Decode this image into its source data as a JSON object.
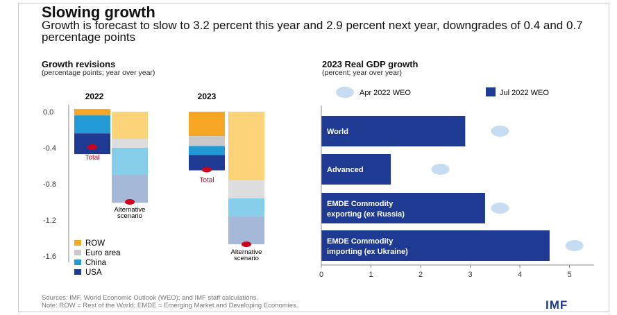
{
  "header": {
    "title": "Slowing growth",
    "subtitle": "Growth is forecast to slow to 3.2 percent this year and 2.9 percent next year, downgrades of 0.4 and 0.7 percentage points"
  },
  "left_panel": {
    "title": "Growth revisions",
    "subtitle": "(percentage points; year over year)"
  },
  "right_panel": {
    "title": "2023 Real GDP growth",
    "subtitle": "(percent; year over year)"
  },
  "footer": {
    "sources": "Sources: IMF, World Economic Outlook (WEO); and IMF staff calculations.",
    "note": "Note: ROW = Rest of the World; EMDE = Emerging Market and Developing Economies.",
    "logo": "IMF"
  },
  "colors": {
    "row": "#f5a623",
    "euro_area": "#c8c8c8",
    "china": "#2399d6",
    "usa": "#1f3a93",
    "alt_light_yellow": "#fbd47a",
    "alt_light_gray": "#dddddd",
    "alt_light_blue": "#87ceeb",
    "alt_steel_blue": "#a5b8d8",
    "marker_red": "#d0021b",
    "apr_marker": "#c6dcf0",
    "jul_bar": "#1f3a93"
  },
  "chart_data": [
    {
      "type": "bar",
      "subtype": "stacked",
      "title": "Growth revisions",
      "subtitle": "(percentage points; year over year)",
      "ylim": [
        -1.6,
        0.0
      ],
      "yticks": [
        "0.0",
        "-0.4",
        "-0.8",
        "-1.2",
        "-1.6"
      ],
      "ytick_values": [
        0.0,
        -0.4,
        -0.8,
        -1.2,
        -1.6
      ],
      "grid": false,
      "legend_position": "bottom-left",
      "legend": [
        "ROW",
        "Euro area",
        "China",
        "USA"
      ],
      "groups": [
        {
          "label": "2022",
          "baseline": {
            "positive": [
              {
                "component": "ROW",
                "value": 0.03
              }
            ],
            "negative": [
              {
                "component": "ROW",
                "value": -0.04
              },
              {
                "component": "China",
                "value": -0.2
              },
              {
                "component": "USA",
                "value": -0.23
              }
            ]
          },
          "alternative": [
            {
              "component": "ROW",
              "value": -0.3
            },
            {
              "component": "Euro area",
              "value": -0.1
            },
            {
              "component": "China",
              "value": -0.3
            },
            {
              "component": "USA",
              "value": -0.31
            }
          ],
          "total": -0.4,
          "total_label": "Total",
          "alternative_total": -1.0,
          "alternative_label": "Alternative scenario"
        },
        {
          "label": "2023",
          "baseline": {
            "positive": [],
            "negative": [
              {
                "component": "ROW",
                "value": -0.27
              },
              {
                "component": "Euro area",
                "value": -0.11
              },
              {
                "component": "China",
                "value": -0.1
              },
              {
                "component": "USA",
                "value": -0.17
              }
            ]
          },
          "alternative": [
            {
              "component": "ROW",
              "value": -0.76
            },
            {
              "component": "Euro area",
              "value": -0.2
            },
            {
              "component": "China",
              "value": -0.2
            },
            {
              "component": "USA",
              "value": -0.31
            }
          ],
          "total": -0.65,
          "total_label": "Total",
          "alternative_total": -1.47,
          "alternative_label": "Alternative scenario"
        }
      ]
    },
    {
      "type": "bar",
      "subtype": "horizontal",
      "title": "2023 Real GDP growth",
      "subtitle": "(percent; year over year)",
      "xlim": [
        0,
        5.5
      ],
      "xticks": [
        "0",
        "1",
        "2",
        "3",
        "4",
        "5"
      ],
      "xtick_values": [
        0,
        1,
        2,
        3,
        4,
        5
      ],
      "grid": false,
      "legend_position": "top",
      "categories": [
        "World",
        "Advanced",
        "EMDE Commodity exporting (ex Russia)",
        "EMDE Commodity importing (ex Ukraine)"
      ],
      "category_lines": [
        [
          "World"
        ],
        [
          "Advanced"
        ],
        [
          "EMDE Commodity",
          "exporting (ex Russia)"
        ],
        [
          "EMDE Commodity",
          "importing (ex Ukraine)"
        ]
      ],
      "series": [
        {
          "name": "Apr 2022 WEO",
          "style": "marker",
          "values": [
            3.6,
            2.4,
            3.6,
            5.1
          ]
        },
        {
          "name": "Jul 2022 WEO",
          "style": "bar",
          "values": [
            2.9,
            1.4,
            3.3,
            4.6
          ]
        }
      ]
    }
  ]
}
